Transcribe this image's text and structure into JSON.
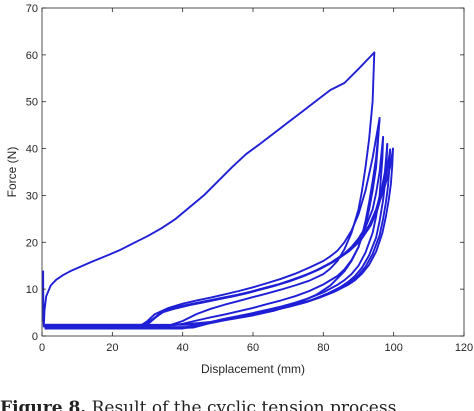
{
  "chart_data": {
    "type": "line",
    "title": "",
    "xlabel": "Displacement (mm)",
    "ylabel": "Force (N)",
    "xlim": [
      0,
      120
    ],
    "ylim": [
      0,
      70
    ],
    "xticks": [
      0,
      20,
      40,
      60,
      80,
      100,
      120
    ],
    "xtick_labels": [
      "0",
      "20",
      "40",
      "60",
      "80",
      "100",
      "120"
    ],
    "yticks": [
      0,
      10,
      20,
      30,
      40,
      50,
      60,
      70
    ],
    "ytick_labels": [
      "0",
      "10",
      "20",
      "30",
      "40",
      "50",
      "60",
      "70"
    ],
    "grid": false,
    "legend": false,
    "line_color": "#1f1fd6",
    "series": [
      {
        "x": [
          0.3,
          0.4,
          0.5,
          0.7,
          1.2,
          2.5,
          4,
          6,
          8,
          10,
          14,
          18,
          22,
          26,
          30,
          34,
          38,
          42,
          46,
          50,
          54,
          58,
          62,
          66,
          70,
          74,
          78,
          82,
          86,
          90,
          94.5
        ],
        "values": [
          13.8,
          3.5,
          2.0,
          5.5,
          8.5,
          10.8,
          12.0,
          13.0,
          13.8,
          14.5,
          15.8,
          17.0,
          18.3,
          19.8,
          21.3,
          23.0,
          25.0,
          27.5,
          30.0,
          33.0,
          36.0,
          38.8,
          41.0,
          43.3,
          45.6,
          47.9,
          50.2,
          52.5,
          54.0,
          57.0,
          60.5
        ]
      },
      {
        "x": [
          94.5,
          94.0,
          93.0,
          92.0,
          91.0,
          90.0,
          88.0,
          86.0,
          84.0,
          82.0,
          80.0,
          76.0,
          72.0,
          68.0,
          64.0,
          60.0,
          56.0,
          52.0,
          48.0,
          44.0,
          40.0,
          36.0,
          32.0,
          28.0,
          24.0,
          20.0,
          16.0,
          12.0,
          8.0,
          4.0,
          1.0
        ],
        "values": [
          60.5,
          50.0,
          42.0,
          36.0,
          31.0,
          27.0,
          22.0,
          18.5,
          16.0,
          14.4,
          13.2,
          11.8,
          10.8,
          9.9,
          9.1,
          8.3,
          7.5,
          6.7,
          5.8,
          4.7,
          3.2,
          2.2,
          2.2,
          2.2,
          2.2,
          2.2,
          2.2,
          2.2,
          2.2,
          2.2,
          2.2
        ]
      },
      {
        "x": [
          1.0,
          4.0,
          8.0,
          12.0,
          16.0,
          20.0,
          24.0,
          28.0,
          30.0,
          32.0,
          36.0,
          40.0,
          44.0,
          48.0,
          52.0,
          56.0,
          60.0,
          64.0,
          68.0,
          72.0,
          76.0,
          80.0,
          82.0,
          84.0,
          86.0,
          88.0,
          90.0,
          92.0,
          94.0,
          96.0
        ],
        "values": [
          2.2,
          2.2,
          2.2,
          2.2,
          2.2,
          2.2,
          2.2,
          2.2,
          3.2,
          4.6,
          6.0,
          6.9,
          7.6,
          8.2,
          8.9,
          9.6,
          10.4,
          11.3,
          12.2,
          13.3,
          14.6,
          16.0,
          17.0,
          18.2,
          20.0,
          22.5,
          26.0,
          31.0,
          38.0,
          46.5
        ]
      },
      {
        "x": [
          96.0,
          95.5,
          95.0,
          94.0,
          93.0,
          92.0,
          90.0,
          88.0,
          86.0,
          84.0,
          80.0,
          76.0,
          72.0,
          68.0,
          64.0,
          60.0,
          56.0,
          52.0,
          48.0,
          44.0,
          40.0,
          36.0,
          32.0,
          30.0,
          28.0,
          24.0,
          20.0,
          16.0,
          12.0,
          8.0,
          4.0,
          1.0
        ],
        "values": [
          46.5,
          41.0,
          36.0,
          31.0,
          27.0,
          23.5,
          19.0,
          16.2,
          14.2,
          12.8,
          11.0,
          9.6,
          8.5,
          7.6,
          6.8,
          6.0,
          5.3,
          4.6,
          4.0,
          3.3,
          2.6,
          2.2,
          2.2,
          2.2,
          2.2,
          2.2,
          2.2,
          2.2,
          2.2,
          2.2,
          2.2,
          2.2
        ]
      },
      {
        "x": [
          1.0,
          5.0,
          10.0,
          15.0,
          20.0,
          25.0,
          28.0,
          30.0,
          32.0,
          34.0,
          38.0,
          42.0,
          46.0,
          50.0,
          54.0,
          58.0,
          62.0,
          66.0,
          70.0,
          74.0,
          78.0,
          82.0,
          86.0,
          88.0,
          90.0,
          92.0,
          94.0,
          95.0,
          96.0,
          97.0
        ],
        "values": [
          1.6,
          1.6,
          1.6,
          1.6,
          1.6,
          1.6,
          1.6,
          2.5,
          3.8,
          5.0,
          5.9,
          6.6,
          7.2,
          7.8,
          8.4,
          9.1,
          9.9,
          10.7,
          11.6,
          12.7,
          14.0,
          15.6,
          17.6,
          19.0,
          20.8,
          23.2,
          27.0,
          30.5,
          35.0,
          42.5
        ]
      },
      {
        "x": [
          97.0,
          96.8,
          96.4,
          96.0,
          95.0,
          94.0,
          92.0,
          90.0,
          88.0,
          86.0,
          84.0,
          80.0,
          76.0,
          72.0,
          68.0,
          64.0,
          60.0,
          56.0,
          52.0,
          48.0,
          44.0,
          42.0,
          40.0,
          36.0,
          32.0,
          28.0,
          24.0,
          20.0,
          15.0,
          10.0,
          5.0,
          1.0
        ],
        "values": [
          42.5,
          38.0,
          34.0,
          30.0,
          25.5,
          22.0,
          17.8,
          15.0,
          13.2,
          11.9,
          10.9,
          9.3,
          8.1,
          7.1,
          6.3,
          5.6,
          4.9,
          4.3,
          3.7,
          3.0,
          2.3,
          1.9,
          1.6,
          1.6,
          1.6,
          1.6,
          1.6,
          1.6,
          1.6,
          1.6,
          1.6,
          1.6
        ]
      },
      {
        "x": [
          1.0,
          5.0,
          10.0,
          15.0,
          20.0,
          25.0,
          29.0,
          31.0,
          33.0,
          35.0,
          39.0,
          43.0,
          47.0,
          51.0,
          55.0,
          59.0,
          63.0,
          67.0,
          71.0,
          75.0,
          79.0,
          83.0,
          87.0,
          90.0,
          93.0,
          95.0,
          96.5,
          97.5,
          98.2
        ],
        "values": [
          1.9,
          1.9,
          1.9,
          1.9,
          1.9,
          1.9,
          2.1,
          3.2,
          4.4,
          5.4,
          6.2,
          6.8,
          7.4,
          8.0,
          8.6,
          9.3,
          10.1,
          10.9,
          11.9,
          13.0,
          14.3,
          15.9,
          18.0,
          20.2,
          23.5,
          27.0,
          31.0,
          35.0,
          41.0
        ]
      },
      {
        "x": [
          98.2,
          98.0,
          97.6,
          97.0,
          96.0,
          95.0,
          93.0,
          91.0,
          89.0,
          87.0,
          85.0,
          81.0,
          77.0,
          73.0,
          69.0,
          65.0,
          61.0,
          57.0,
          53.0,
          49.0,
          45.0,
          43.0,
          41.0,
          37.0,
          33.0,
          29.0,
          25.0,
          20.0,
          15.0,
          10.0,
          5.0,
          1.0
        ],
        "values": [
          41.0,
          37.0,
          33.0,
          29.0,
          24.5,
          21.0,
          17.2,
          14.6,
          12.8,
          11.5,
          10.5,
          9.0,
          7.8,
          6.9,
          6.1,
          5.4,
          4.8,
          4.2,
          3.6,
          3.0,
          2.4,
          2.1,
          1.9,
          1.9,
          1.9,
          1.9,
          1.9,
          1.9,
          1.9,
          1.9,
          1.9,
          1.9
        ]
      },
      {
        "x": [
          1.0,
          5.0,
          10.0,
          15.0,
          20.0,
          25.0,
          29.0,
          31.5,
          33.5,
          35.5,
          39.5,
          43.5,
          47.5,
          51.5,
          55.5,
          59.5,
          63.5,
          67.5,
          71.5,
          75.5,
          79.5,
          83.5,
          87.5,
          90.5,
          93.5,
          95.5,
          97.0,
          98.2,
          99.0
        ],
        "values": [
          2.4,
          2.4,
          2.4,
          2.4,
          2.4,
          2.4,
          2.4,
          3.6,
          4.8,
          5.7,
          6.4,
          7.0,
          7.6,
          8.2,
          8.8,
          9.5,
          10.3,
          11.1,
          12.1,
          13.2,
          14.5,
          16.1,
          18.2,
          20.3,
          23.6,
          27.2,
          31.5,
          35.5,
          39.8
        ]
      },
      {
        "x": [
          99.0,
          98.8,
          98.4,
          97.8,
          97.0,
          96.0,
          94.0,
          92.0,
          90.0,
          88.0,
          86.0,
          82.0,
          78.0,
          74.0,
          70.0,
          66.0,
          62.0,
          58.0,
          54.0,
          50.0,
          46.0,
          44.0,
          42.0,
          38.0,
          34.0,
          30.0,
          26.0,
          22.0,
          16.0,
          10.0,
          5.0,
          1.0
        ],
        "values": [
          39.8,
          36.0,
          32.0,
          28.5,
          25.0,
          21.5,
          17.5,
          14.8,
          13.0,
          11.7,
          10.7,
          9.2,
          8.0,
          7.0,
          6.2,
          5.5,
          4.9,
          4.3,
          3.7,
          3.1,
          2.6,
          2.4,
          2.4,
          2.4,
          2.4,
          2.4,
          2.4,
          2.4,
          2.4,
          2.4,
          2.4,
          2.4
        ]
      },
      {
        "x": [
          1.0,
          5.0,
          10.0,
          15.0,
          20.0,
          25.0,
          28.0,
          30.5,
          32.5,
          34.5,
          38.5,
          42.5,
          46.5,
          50.5,
          54.5,
          58.5,
          62.5,
          66.5,
          70.5,
          74.5,
          78.5,
          82.5,
          86.5,
          90.0,
          93.0,
          95.5,
          97.5,
          99.0,
          99.8
        ],
        "values": [
          1.7,
          1.7,
          1.7,
          1.7,
          1.7,
          1.7,
          1.7,
          2.8,
          4.1,
          5.2,
          6.0,
          6.7,
          7.3,
          7.9,
          8.5,
          9.2,
          10.0,
          10.8,
          11.7,
          12.8,
          14.1,
          15.7,
          17.7,
          20.2,
          23.6,
          27.5,
          32.0,
          36.0,
          40.0
        ]
      },
      {
        "x": [
          99.8,
          99.6,
          99.2,
          98.6,
          97.8,
          96.8,
          95.0,
          93.0,
          91.0,
          89.0,
          87.0,
          83.0,
          79.0,
          75.0,
          71.0,
          67.0,
          63.0,
          59.0,
          55.0,
          51.0,
          47.0,
          45.0,
          43.0,
          39.0,
          35.0,
          31.0,
          27.0,
          22.0,
          16.0,
          10.0,
          5.0,
          1.0
        ],
        "values": [
          40.0,
          36.5,
          32.5,
          29.0,
          25.5,
          22.0,
          18.0,
          15.2,
          13.3,
          11.9,
          10.9,
          9.4,
          8.2,
          7.2,
          6.4,
          5.7,
          5.0,
          4.4,
          3.8,
          3.2,
          2.6,
          2.2,
          1.8,
          1.7,
          1.7,
          1.7,
          1.7,
          1.7,
          1.7,
          1.7,
          1.7,
          1.7
        ]
      },
      {
        "x": [
          1.0,
          8.0,
          16.0,
          24.0,
          30.0,
          36.0,
          42.0,
          48.0,
          54.0,
          60.0,
          66.0,
          72.0,
          78.0,
          82.0,
          86.0,
          88.0,
          90.0,
          91.0,
          92.0,
          93.0,
          94.0,
          95.0,
          95.5,
          96.0
        ],
        "values": [
          2.2,
          2.2,
          2.2,
          2.2,
          2.2,
          2.3,
          2.6,
          3.0,
          3.6,
          4.4,
          5.4,
          6.8,
          8.8,
          10.8,
          13.8,
          16.0,
          19.0,
          21.5,
          24.5,
          28.5,
          33.0,
          38.0,
          42.0,
          46.5
        ]
      }
    ]
  },
  "figure": {
    "caption_label": "Figure 8.",
    "caption_text": " Result of the cyclic tension process"
  }
}
